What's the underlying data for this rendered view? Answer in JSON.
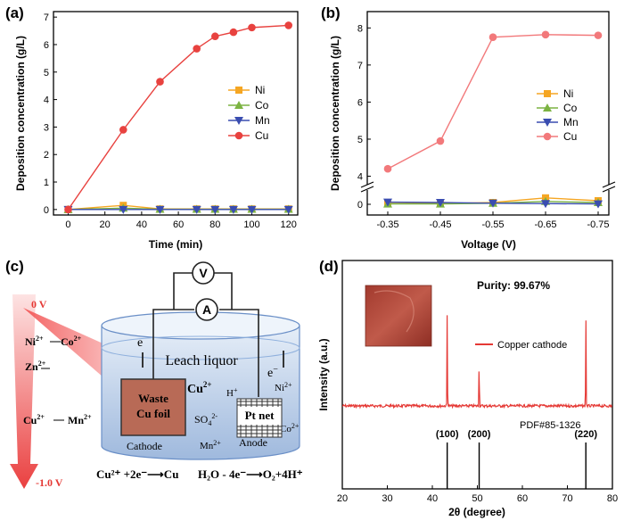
{
  "chart_data": [
    {
      "panel": "(a)",
      "type": "line",
      "xlabel": "Time (min)",
      "ylabel": "Deposition concentration (g/L)",
      "xlim": [
        -8,
        125
      ],
      "ylim": [
        -0.2,
        7.2
      ],
      "x_ticks": [
        "0",
        "20",
        "40",
        "60",
        "80",
        "100",
        "120"
      ],
      "y_ticks": [
        "0",
        "1",
        "2",
        "3",
        "4",
        "5",
        "6",
        "7"
      ],
      "x": [
        0,
        30,
        50,
        70,
        80,
        90,
        100,
        120
      ],
      "series": [
        {
          "name": "Ni",
          "color": "#f5a623",
          "marker": "square",
          "values": [
            0,
            0.15,
            0.02,
            0.02,
            0.02,
            0.02,
            0.02,
            0.02
          ]
        },
        {
          "name": "Co",
          "color": "#7cb342",
          "marker": "triangle-up",
          "values": [
            0,
            0.05,
            0.01,
            0.01,
            0.01,
            0.01,
            0.01,
            0.01
          ]
        },
        {
          "name": "Mn",
          "color": "#3a4db0",
          "marker": "triangle-down",
          "values": [
            0,
            0,
            0,
            0,
            0,
            0,
            0,
            0
          ]
        },
        {
          "name": "Cu",
          "color": "#e8423f",
          "marker": "circle",
          "values": [
            0,
            2.9,
            4.65,
            5.85,
            6.3,
            6.45,
            6.62,
            6.7
          ]
        }
      ]
    },
    {
      "panel": "(b)",
      "type": "line",
      "xlabel": "Voltage (V)",
      "ylabel": "Deposition concentration (g/L)",
      "categories": [
        "-0.35",
        "-0.45",
        "-0.55",
        "-0.65",
        "-0.75"
      ],
      "y_ticks": [
        "0",
        "4",
        "5",
        "6",
        "7",
        "8"
      ],
      "axis_break": [
        0.3,
        3.7
      ],
      "series": [
        {
          "name": "Ni",
          "color": "#f5a623",
          "marker": "square",
          "values": [
            0.02,
            0.02,
            0.05,
            0.18,
            0.1
          ]
        },
        {
          "name": "Co",
          "color": "#7cb342",
          "marker": "triangle-up",
          "values": [
            0.01,
            0.01,
            0.03,
            0.08,
            0.05
          ]
        },
        {
          "name": "Mn",
          "color": "#3a4db0",
          "marker": "triangle-down",
          "values": [
            0.06,
            0.05,
            0.03,
            0.02,
            0.01
          ]
        },
        {
          "name": "Cu",
          "color": "#f2797b",
          "marker": "circle",
          "values": [
            4.2,
            4.95,
            7.75,
            7.82,
            7.8
          ]
        }
      ]
    },
    {
      "panel": "(d)",
      "type": "line",
      "xlabel": "2θ (degree)",
      "ylabel": "Intensity (a.u.)",
      "xlim": [
        20,
        80
      ],
      "x_ticks": [
        "20",
        "30",
        "40",
        "50",
        "60",
        "70",
        "80"
      ],
      "annotation": "Purity: 99.67%",
      "legend": "Copper cathode",
      "reference": "PDF#85-1326",
      "peaks": [
        {
          "two_theta": 43.3,
          "label": "(100)",
          "height": 1.0
        },
        {
          "two_theta": 50.4,
          "label": "(200)",
          "height": 0.5
        },
        {
          "two_theta": 74.1,
          "label": "(220)",
          "height": 0.95
        }
      ]
    }
  ],
  "panel_c": {
    "label": "(c)",
    "scale_top": "0 V",
    "scale_bottom": "-1.0 V",
    "ni": "Ni",
    "co": "Co",
    "zn": "Zn",
    "cu": "Cu",
    "mn": "Mn",
    "sup_2plus": "2+",
    "voltmeter": "V",
    "ammeter": "A",
    "electron": "e",
    "electron_minus": "e",
    "minus": "−",
    "leach": "Leach liquor",
    "waste_line1": "Waste",
    "waste_line2": "Cu foil",
    "cu_ion": "Cu",
    "h_plus": "H",
    "plus": "+",
    "ni_ion": "Ni",
    "so4": "SO",
    "so4_sub": "4",
    "so4_sup": "2-",
    "co_ion": "Co",
    "mn_ion": "Mn",
    "pt": "Pt net",
    "cathode": "Cathode",
    "anode": "Anode",
    "eq1": "Cu²⁺ +2e⁻⟶Cu",
    "eq2": "H₂O - 4e⁻⟶O₂+4H⁺"
  }
}
